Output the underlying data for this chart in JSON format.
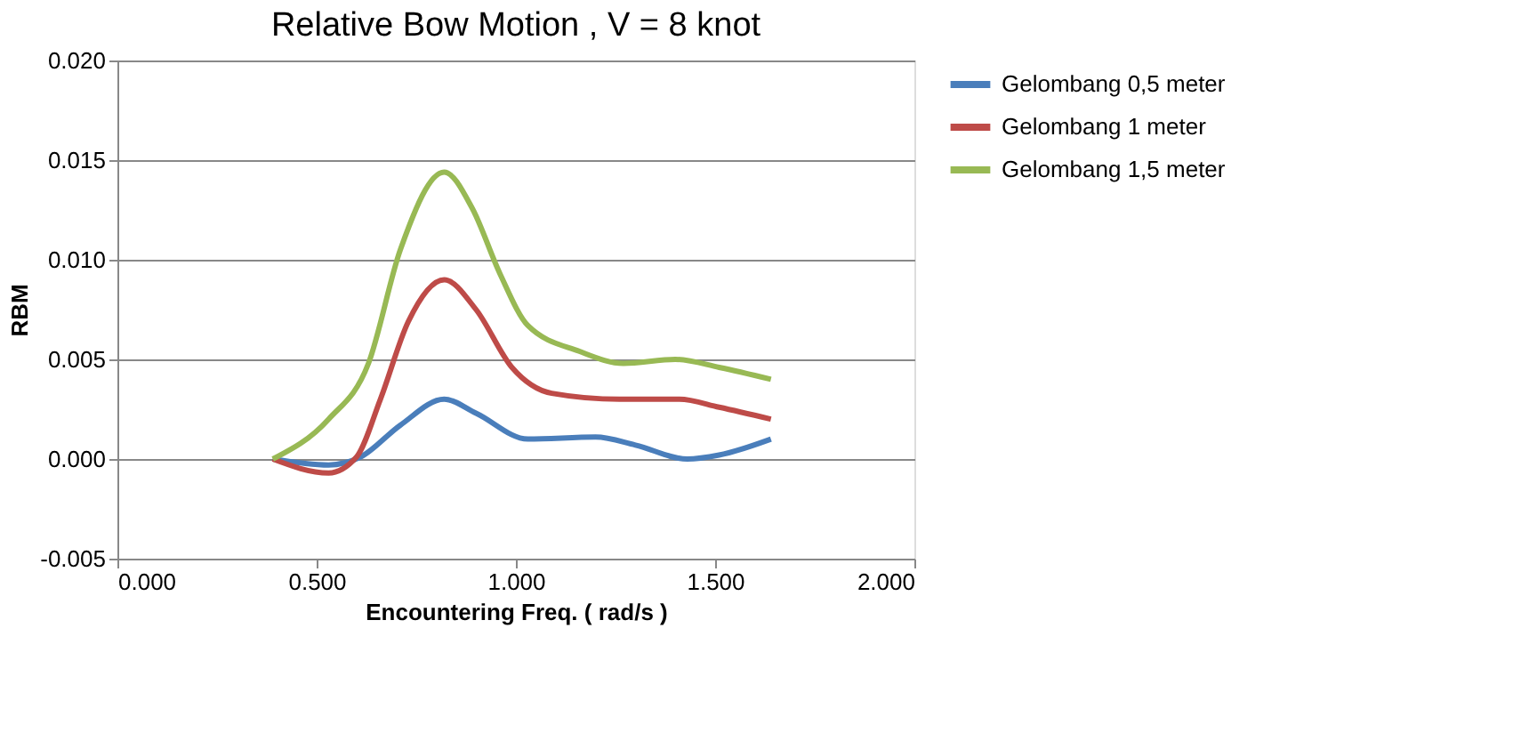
{
  "chart_data": {
    "type": "line",
    "title": "Relative Bow Motion , V = 8 knot",
    "xlabel": "Encountering Freq. ( rad/s )",
    "ylabel": "RBM",
    "xlim": [
      0,
      2
    ],
    "xticks": [
      {
        "value": 0,
        "label": "0.000"
      },
      {
        "value": 0.5,
        "label": "0.500"
      },
      {
        "value": 1,
        "label": "1.000"
      },
      {
        "value": 1.5,
        "label": "1.500"
      },
      {
        "value": 2,
        "label": "2.000"
      }
    ],
    "ylim": [
      -0.005,
      0.02
    ],
    "yticks": [
      {
        "value": -0.005,
        "label": "-0.005"
      },
      {
        "value": 0,
        "label": "0.000"
      },
      {
        "value": 0.005,
        "label": "0.005"
      },
      {
        "value": 0.01,
        "label": "0.010"
      },
      {
        "value": 0.015,
        "label": "0.015"
      },
      {
        "value": 0.02,
        "label": "0.020"
      }
    ],
    "grid": "y",
    "legend": "right",
    "marker": "none",
    "line_style": "solid",
    "series": [
      {
        "name": "Gelombang 0,5 meter",
        "color": "#4a7ebb",
        "x": [
          0.39,
          0.53,
          0.61,
          0.71,
          0.82,
          0.9,
          1.03,
          1.2,
          1.3,
          1.43,
          1.51,
          1.64
        ],
        "values": [
          0,
          -0.0003,
          0.0001,
          0.0017,
          0.003,
          0.0023,
          0.001,
          0.0011,
          0.0007,
          0,
          0.0002,
          0.001
        ]
      },
      {
        "name": "Gelombang 1 meter",
        "color": "#be4b48",
        "x": [
          0.39,
          0.53,
          0.6,
          0.66,
          0.73,
          0.82,
          0.9,
          0.99,
          1.09,
          1.26,
          1.41,
          1.51,
          1.64
        ],
        "values": [
          0,
          -0.0007,
          0.0001,
          0.003,
          0.0069,
          0.009,
          0.0075,
          0.0046,
          0.0033,
          0.003,
          0.003,
          0.0026,
          0.002
        ]
      },
      {
        "name": "Gelombang 1,5 meter",
        "color": "#98b954",
        "x": [
          0.39,
          0.53,
          0.63,
          0.71,
          0.82,
          0.89,
          0.96,
          1.03,
          1.16,
          1.27,
          1.4,
          1.51,
          1.64
        ],
        "values": [
          0,
          0.002,
          0.0048,
          0.0105,
          0.0144,
          0.0126,
          0.0093,
          0.0067,
          0.0054,
          0.0048,
          0.005,
          0.0046,
          0.004
        ]
      }
    ]
  }
}
